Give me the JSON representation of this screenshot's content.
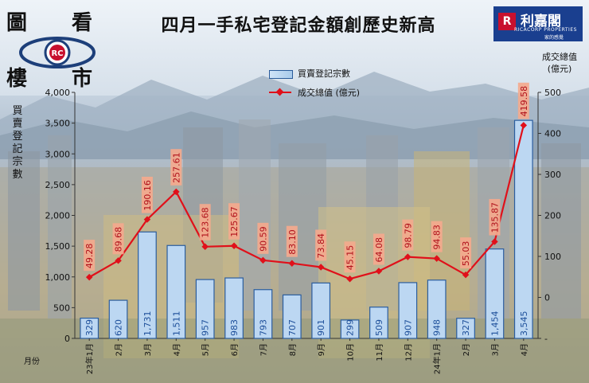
{
  "title": "四月一手私宅登記金額創歷史新高",
  "logo_left": {
    "chars": [
      "圖",
      "看",
      "樓",
      "市"
    ],
    "emblem": "RC"
  },
  "brand": {
    "name": "利嘉閣",
    "sub": "RICACORP PROPERTIES",
    "tagline": "家的感覺",
    "mark": "R"
  },
  "legend": {
    "bars": "買賣登記宗數",
    "line": "成交總值 (億元)"
  },
  "y_left_label": "買賣登記宗數",
  "y_right_label": [
    "成交總值",
    "(億元)"
  ],
  "x_label": "月份",
  "chart_data": {
    "type": "bar",
    "categories": [
      "23年1月",
      "2月",
      "3月",
      "4月",
      "5月",
      "6月",
      "7月",
      "8月",
      "9月",
      "10月",
      "11月",
      "12月",
      "24年1月",
      "2月",
      "3月",
      "4月"
    ],
    "series": [
      {
        "name": "買賣登記宗數",
        "type": "bar",
        "axis": "left",
        "values": [
          329,
          620,
          1731,
          1511,
          957,
          983,
          793,
          707,
          901,
          299,
          509,
          907,
          948,
          327,
          1454,
          3545
        ],
        "labels": [
          "329",
          "620",
          "1,731",
          "1,511",
          "957",
          "983",
          "793",
          "707",
          "901",
          "299",
          "509",
          "907",
          "948",
          "327",
          "1,454",
          "3,545"
        ]
      },
      {
        "name": "成交總值 (億元)",
        "type": "line",
        "axis": "right",
        "values": [
          49.28,
          89.68,
          190.16,
          257.61,
          123.68,
          125.67,
          90.59,
          83.1,
          73.84,
          45.15,
          64.08,
          98.79,
          94.83,
          55.03,
          135.87,
          419.58
        ],
        "labels": [
          "49.28",
          "89.68",
          "190.16",
          "257.61",
          "123.68",
          "125.67",
          "90.59",
          "83.10",
          "73.84",
          "45.15",
          "64.08",
          "98.79",
          "94.83",
          "55.03",
          "135.87",
          "419.58"
        ]
      }
    ],
    "y_left": {
      "min": 0,
      "max": 4000,
      "ticks": [
        "0",
        "500",
        "1,000",
        "1,500",
        "2,000",
        "2,500",
        "3,000",
        "3,500",
        "4,000"
      ]
    },
    "y_right": {
      "min": -100,
      "max": 500,
      "ticks": [
        "-",
        "0",
        "100",
        "200",
        "300",
        "400",
        "500"
      ]
    },
    "grid": false,
    "colors": {
      "bar_fill": "#bcd7f2",
      "bar_stroke": "#2b5d9e",
      "line": "#e0101a",
      "label_box": "#f4a98d"
    }
  }
}
